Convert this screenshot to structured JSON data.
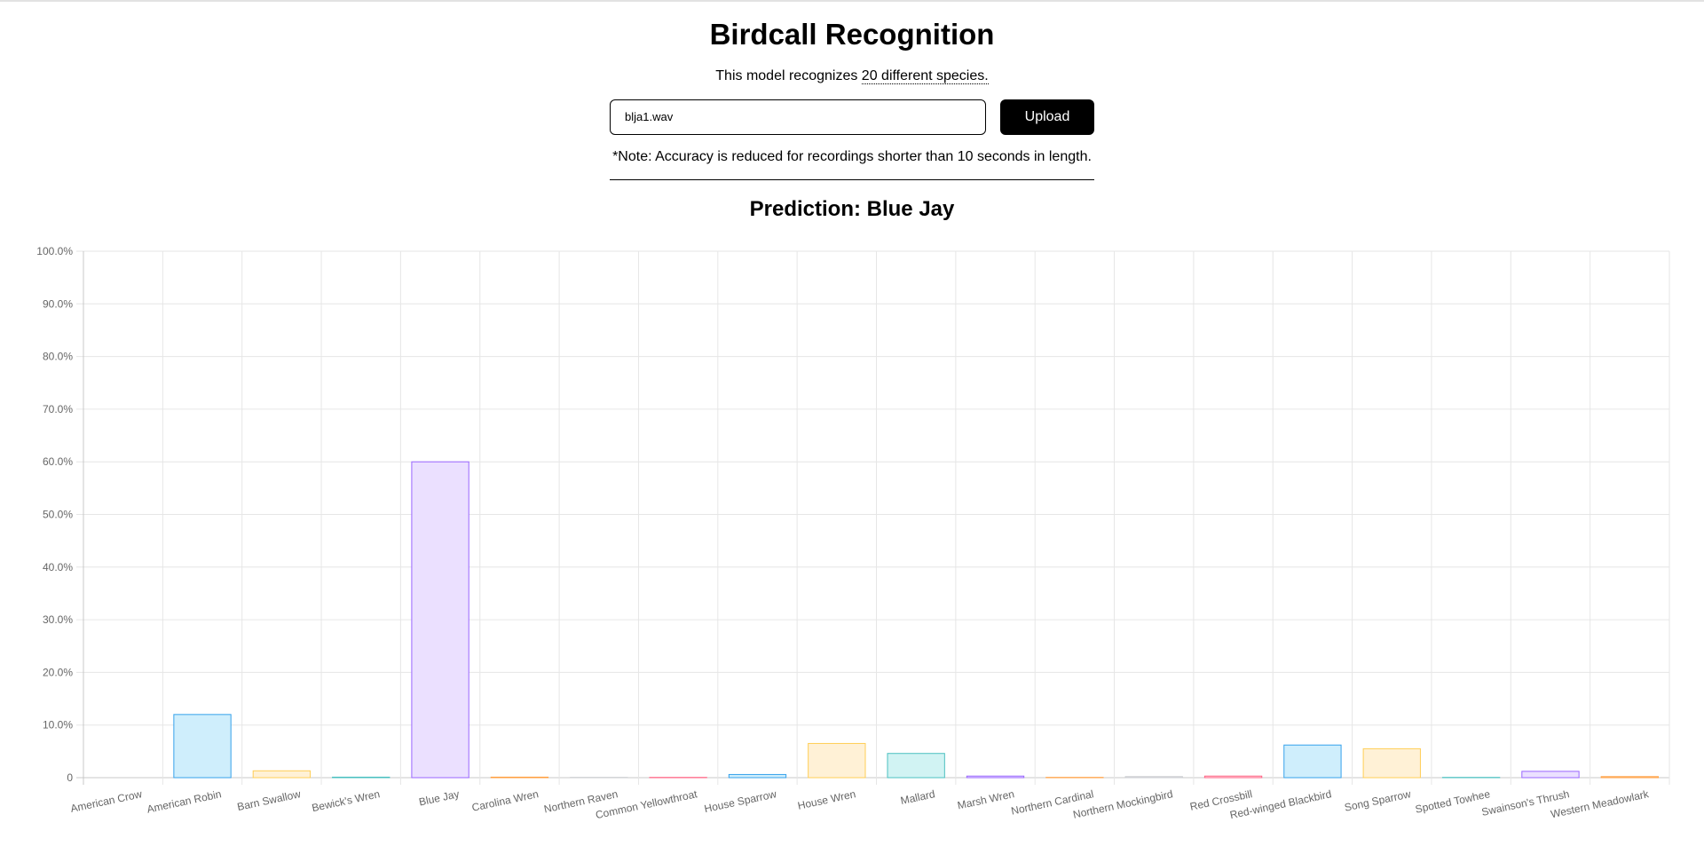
{
  "page": {
    "title": "Birdcall Recognition",
    "subtitle_prefix": "This model recognizes ",
    "subtitle_link": "20 different species.",
    "file_value": "blja1.wav",
    "upload_label": "Upload",
    "note": "*Note: Accuracy is reduced for recordings shorter than 10 seconds in length.",
    "prediction": "Prediction: Blue Jay"
  },
  "chart_data": {
    "type": "bar",
    "categories": [
      "American Crow",
      "American Robin",
      "Barn Swallow",
      "Bewick's Wren",
      "Blue Jay",
      "Carolina Wren",
      "Northern Raven",
      "Common Yellowthroat",
      "House Sparrow",
      "House Wren",
      "Mallard",
      "Marsh Wren",
      "Northern Cardinal",
      "Northern Mockingbird",
      "Red Crossbill",
      "Red-winged Blackbird",
      "Song Sparrow",
      "Spotted Towhee",
      "Swainson's Thrush",
      "Western Meadowlark"
    ],
    "values": [
      0.0,
      12.0,
      1.3,
      0.1,
      60.0,
      0.1,
      0.05,
      0.05,
      0.6,
      6.5,
      4.6,
      0.3,
      0.05,
      0.2,
      0.3,
      6.2,
      5.5,
      0.05,
      1.2,
      0.2
    ],
    "yticks": [
      "0",
      "10.0%",
      "20.0%",
      "30.0%",
      "40.0%",
      "50.0%",
      "60.0%",
      "70.0%",
      "80.0%",
      "90.0%",
      "100.0%"
    ],
    "ylim": [
      0,
      100
    ],
    "grid": true,
    "colors": [
      {
        "fill": "#ffdfe6",
        "stroke": "#ff6384"
      },
      {
        "fill": "#cfeefc",
        "stroke": "#36a2eb"
      },
      {
        "fill": "#fff1d6",
        "stroke": "#ffce56"
      },
      {
        "fill": "#d1f3f3",
        "stroke": "#4bc0c0"
      },
      {
        "fill": "#ebe0ff",
        "stroke": "#9966ff"
      },
      {
        "fill": "#ffe5cc",
        "stroke": "#ff9f40"
      },
      {
        "fill": "#f3f3f4",
        "stroke": "#c9cbcf"
      }
    ]
  }
}
